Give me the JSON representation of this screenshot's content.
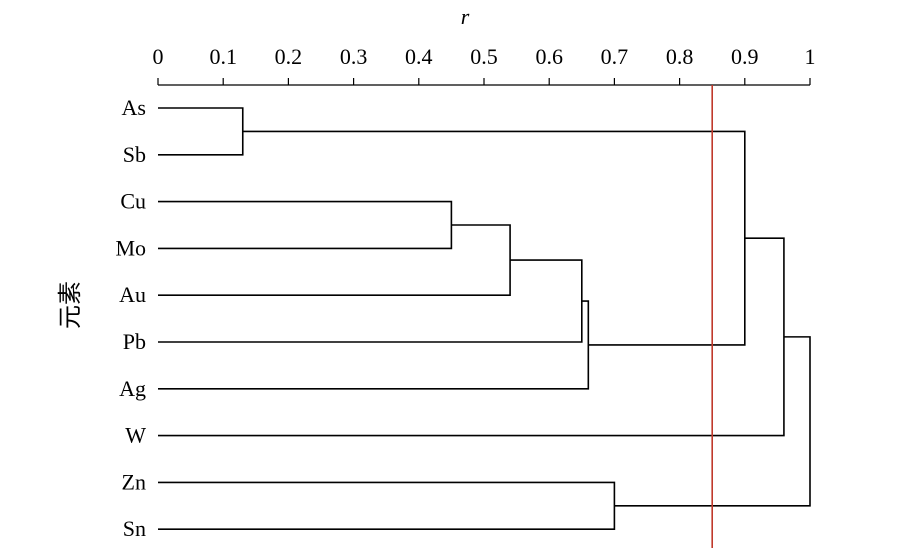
{
  "chart_data": {
    "type": "dendrogram",
    "xlabel": "r",
    "ylabel": "元素",
    "xlim": [
      0,
      1
    ],
    "xticks": [
      0,
      0.1,
      0.2,
      0.3,
      0.4,
      0.5,
      0.6,
      0.7,
      0.8,
      0.9,
      1
    ],
    "xtick_labels": [
      "0",
      "0.1",
      "0.2",
      "0.3",
      "0.4",
      "0.5",
      "0.6",
      "0.7",
      "0.8",
      "0.9",
      "1"
    ],
    "leaves": [
      "As",
      "Sb",
      "Cu",
      "Mo",
      "Au",
      "Pb",
      "Ag",
      "W",
      "Zn",
      "Sn"
    ],
    "merges": [
      {
        "id": "m1",
        "left": "As",
        "right": "Sb",
        "r": 0.13
      },
      {
        "id": "m2",
        "left": "Cu",
        "right": "Mo",
        "r": 0.45
      },
      {
        "id": "m3",
        "left": "m2",
        "right": "Au",
        "r": 0.54
      },
      {
        "id": "m4",
        "left": "m3",
        "right": "Pb",
        "r": 0.65
      },
      {
        "id": "m5",
        "left": "m4",
        "right": "Ag",
        "r": 0.66
      },
      {
        "id": "m6",
        "left": "Zn",
        "right": "Sn",
        "r": 0.7
      },
      {
        "id": "m7",
        "left": "m1",
        "right": "m5",
        "r": 0.9
      },
      {
        "id": "m8",
        "left": "m7",
        "right": "W",
        "r": 0.96
      },
      {
        "id": "m9",
        "left": "m8",
        "right": "m6",
        "r": 1.0
      }
    ],
    "threshold": {
      "r": 0.85,
      "color": "#c0392b"
    },
    "grid": false
  }
}
